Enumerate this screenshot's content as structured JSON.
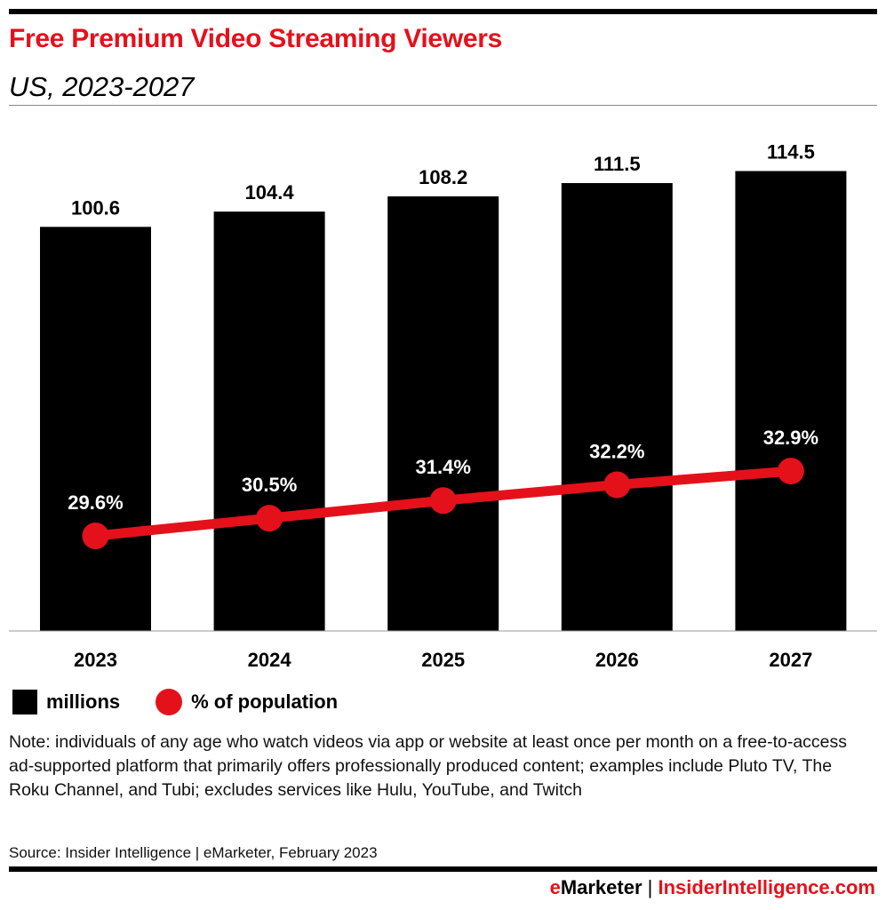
{
  "header": {
    "title": "Free Premium Video Streaming Viewers",
    "subtitle": "US, 2023-2027"
  },
  "chart_data": {
    "type": "bar",
    "categories": [
      "2023",
      "2024",
      "2025",
      "2026",
      "2027"
    ],
    "series": [
      {
        "name": "millions",
        "type": "bar",
        "values": [
          100.6,
          104.4,
          108.2,
          111.5,
          114.5
        ],
        "labels": [
          "100.6",
          "104.4",
          "108.2",
          "111.5",
          "114.5"
        ],
        "color": "#000000"
      },
      {
        "name": "% of population",
        "type": "line",
        "values": [
          29.6,
          30.5,
          31.4,
          32.2,
          32.9
        ],
        "labels": [
          "29.6%",
          "30.5%",
          "31.4%",
          "32.2%",
          "32.9%"
        ],
        "color": "#e4111b"
      }
    ],
    "grid": false,
    "legend": "bottom-left"
  },
  "note": "Note: individuals of any age who watch videos via app or website at least once per month on a free-to-access ad-supported platform that primarily offers professionally produced content; examples include Pluto TV, The Roku Channel, and Tubi; excludes services like Hulu, YouTube, and Twitch",
  "source": "Source: Insider Intelligence | eMarketer, February 2023",
  "footer": {
    "e": "e",
    "marketer": "Marketer",
    "sep": " | ",
    "site": "InsiderIntelligence.com"
  }
}
